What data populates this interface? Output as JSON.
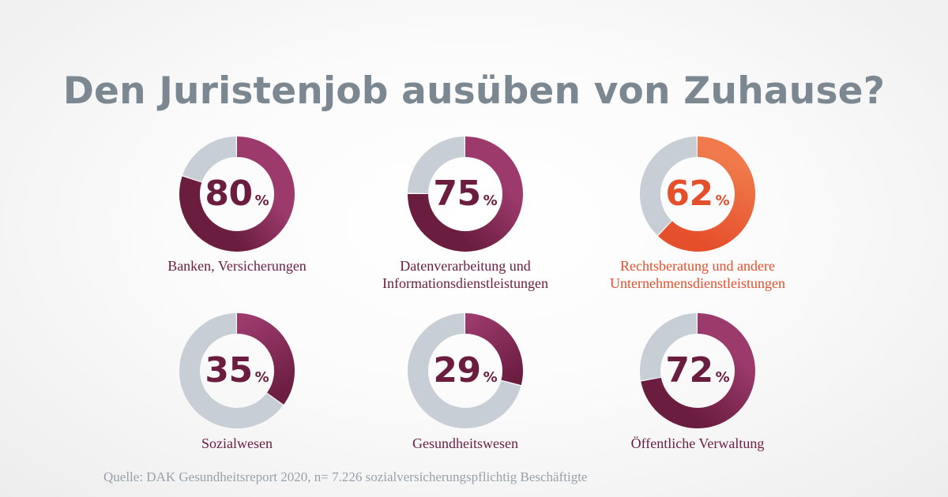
{
  "title": "Den Juristenjob ausüben von Zuhause?",
  "source": "Quelle: DAK Gesundheitsreport 2020, n= 7.226 sozialversicherungspflichtig Beschäftigte",
  "colors": {
    "track": "#c7ced5",
    "purple_light": "#9c3a6c",
    "purple_dark": "#6b1d40",
    "orange_light": "#f07a4c",
    "orange_dark": "#e5502c",
    "text_purple": "#6b1d40",
    "text_orange": "#e5502c"
  },
  "chart_data": {
    "type": "donut",
    "unit": "%",
    "items": [
      {
        "label_lines": [
          "Banken, Versicherungen"
        ],
        "value": 80,
        "highlight": false
      },
      {
        "label_lines": [
          "Datenverarbeitung und",
          "Informationsdienstleistungen"
        ],
        "value": 75,
        "highlight": false
      },
      {
        "label_lines": [
          "Rechtsberatung und andere",
          "Unternehmensdienstleistungen"
        ],
        "value": 62,
        "highlight": true
      },
      {
        "label_lines": [
          "Sozialwesen"
        ],
        "value": 35,
        "highlight": false
      },
      {
        "label_lines": [
          "Gesundheitswesen"
        ],
        "value": 29,
        "highlight": false
      },
      {
        "label_lines": [
          "Öffentliche Verwaltung"
        ],
        "value": 72,
        "highlight": false
      }
    ]
  }
}
